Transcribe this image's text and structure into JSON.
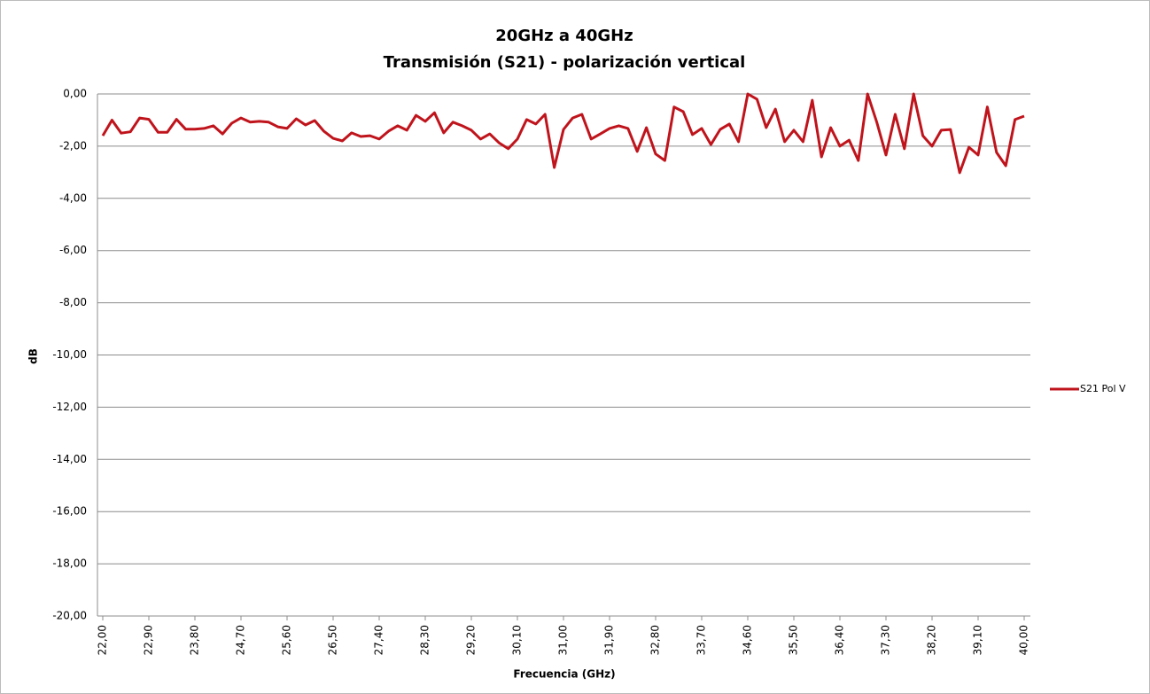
{
  "chart_data": {
    "type": "line",
    "title": "20GHz a 40GHz",
    "subtitle": "Transmisión (S21) - polarización vertical",
    "x_label": "Frecuencia (GHz)",
    "y_label": "dB",
    "categories": [
      "22,00",
      null,
      null,
      null,
      null,
      "22,90",
      null,
      null,
      null,
      null,
      "23,80",
      null,
      null,
      null,
      null,
      "24,70",
      null,
      null,
      null,
      null,
      "25,60",
      null,
      null,
      null,
      null,
      "26,50",
      null,
      null,
      null,
      null,
      "27,40",
      null,
      null,
      null,
      null,
      "28,30",
      null,
      null,
      null,
      null,
      "29,20",
      null,
      null,
      null,
      null,
      "30,10",
      null,
      null,
      null,
      null,
      "31,00",
      null,
      null,
      null,
      null,
      "31,90",
      null,
      null,
      null,
      null,
      "32,80",
      null,
      null,
      null,
      null,
      "33,70",
      null,
      null,
      null,
      null,
      "34,60",
      null,
      null,
      null,
      null,
      "35,50",
      null,
      null,
      null,
      null,
      "36,40",
      null,
      null,
      null,
      null,
      "37,30",
      null,
      null,
      null,
      null,
      "38,20",
      null,
      null,
      null,
      null,
      "39,10",
      null,
      null,
      null,
      null,
      "40,00"
    ],
    "series": [
      {
        "name": "S21 Pol V",
        "color": "#c0141c",
        "values": [
          -1.6,
          -1.0,
          -1.5,
          -1.45,
          -0.92,
          -0.97,
          -1.47,
          -1.47,
          -0.97,
          -1.35,
          -1.35,
          -1.32,
          -1.22,
          -1.53,
          -1.12,
          -0.92,
          -1.08,
          -1.05,
          -1.08,
          -1.26,
          -1.32,
          -0.95,
          -1.19,
          -1.02,
          -1.43,
          -1.7,
          -1.8,
          -1.49,
          -1.63,
          -1.6,
          -1.73,
          -1.43,
          -1.22,
          -1.39,
          -0.82,
          -1.05,
          -0.72,
          -1.49,
          -1.08,
          -1.22,
          -1.39,
          -1.73,
          -1.53,
          -1.87,
          -2.1,
          -1.73,
          -0.98,
          -1.15,
          -0.78,
          -2.82,
          -1.36,
          -0.92,
          -0.78,
          -1.73,
          -1.53,
          -1.32,
          -1.22,
          -1.32,
          -2.2,
          -1.29,
          -2.3,
          -2.55,
          -0.5,
          -0.68,
          -1.56,
          -1.32,
          -1.94,
          -1.36,
          -1.15,
          -1.83,
          0.0,
          -0.2,
          -1.29,
          -0.58,
          -1.83,
          -1.39,
          -1.83,
          -0.24,
          -2.41,
          -1.29,
          -2.0,
          -1.77,
          -2.55,
          0.0,
          -1.08,
          -2.34,
          -0.78,
          -2.1,
          0.0,
          -1.6,
          -2.0,
          -1.39,
          -1.36,
          -3.02,
          -2.04,
          -2.34,
          -0.5,
          -2.24,
          -2.75,
          -0.98,
          -0.85
        ]
      }
    ],
    "ylim": [
      -20,
      0
    ],
    "yticks": [
      {
        "value": 0,
        "label": "0,00"
      },
      {
        "value": -2,
        "label": "-2,00"
      },
      {
        "value": -4,
        "label": "-4,00"
      },
      {
        "value": -6,
        "label": "-6,00"
      },
      {
        "value": -8,
        "label": "-8,00"
      },
      {
        "value": -10,
        "label": "-10,00"
      },
      {
        "value": -12,
        "label": "-12,00"
      },
      {
        "value": -14,
        "label": "-14,00"
      },
      {
        "value": -16,
        "label": "-16,00"
      },
      {
        "value": -18,
        "label": "-18,00"
      },
      {
        "value": -20,
        "label": "-20,00"
      }
    ],
    "grid": true,
    "legend": "right"
  }
}
